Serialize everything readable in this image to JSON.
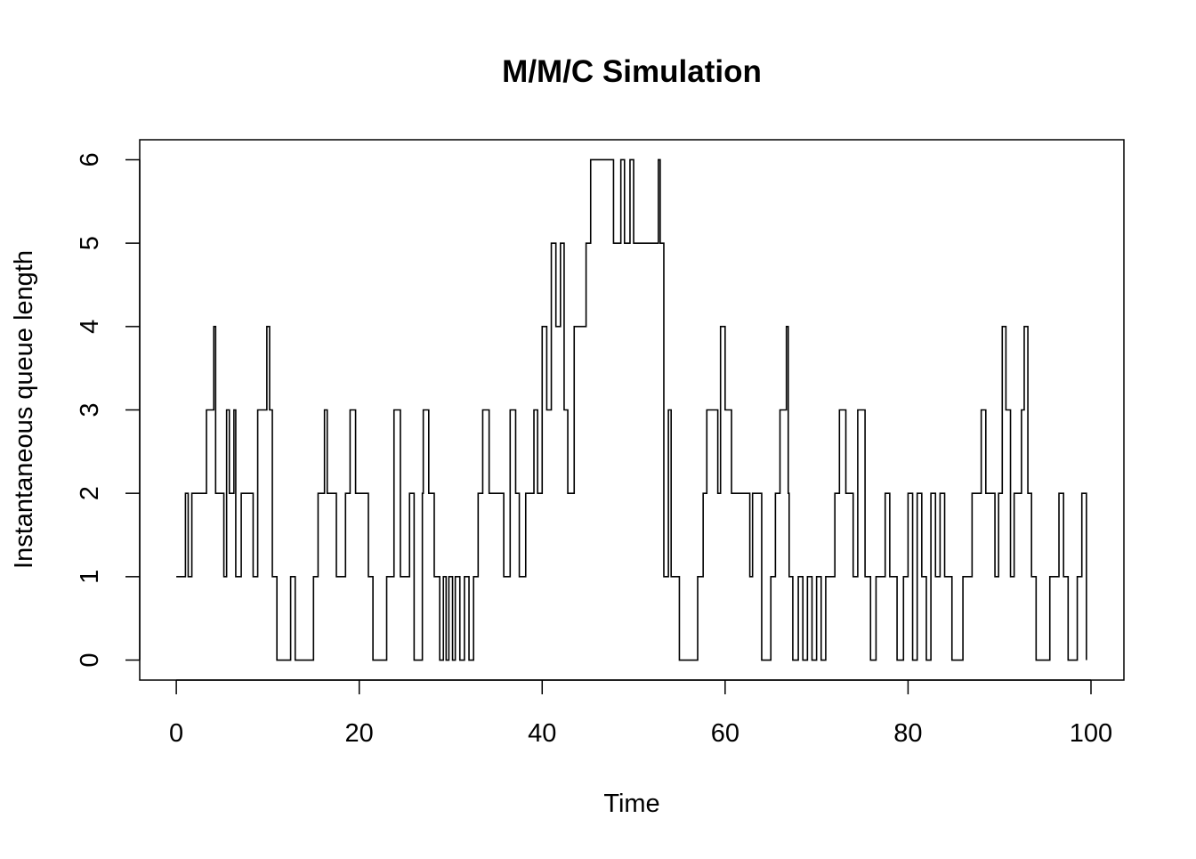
{
  "chart_data": {
    "type": "step",
    "title": "M/M/C Simulation",
    "x_label": "Time",
    "y_label": "Instantaneous queue length",
    "xlim": [
      -4,
      103.6
    ],
    "ylim": [
      -0.24,
      6.24
    ],
    "xticks": [
      0,
      20,
      40,
      60,
      80,
      100
    ],
    "yticks": [
      0,
      1,
      2,
      3,
      4,
      5,
      6
    ],
    "color": "#000000",
    "series": [
      {
        "x": [
          0,
          1,
          1.3,
          1.7,
          3.3,
          4.1,
          4.3,
          5.2,
          5.5,
          5.8,
          6.3,
          6.5,
          7.1,
          8.4,
          8.9,
          9.9,
          10.2,
          10.5,
          11,
          12.5,
          13,
          15,
          15.5,
          16.2,
          16.5,
          17.5,
          18.5,
          19,
          19.6,
          21,
          21.5,
          23,
          23.8,
          24.5,
          25.5,
          26,
          26.9,
          27,
          27.6,
          28.2,
          28.8,
          29.2,
          29.5,
          29.8,
          30.2,
          30.5,
          31,
          31.5,
          32,
          32.5,
          33,
          33.5,
          34.2,
          35.8,
          36.5,
          37.1,
          37.5,
          38.2,
          39.1,
          39.5,
          40,
          40.5,
          41,
          41.5,
          42,
          42.4,
          42.8,
          43.5,
          44.8,
          45.3,
          47.8,
          48.6,
          49,
          49.6,
          50,
          52.7,
          52.9,
          53.3,
          53.8,
          54.1,
          55,
          57,
          57.6,
          58,
          59.2,
          59.5,
          60,
          60.7,
          62.7,
          63,
          64,
          65,
          65.5,
          66,
          66.7,
          66.9,
          67,
          67.4,
          68,
          68.5,
          69,
          69.5,
          70,
          70.5,
          71,
          72,
          72.5,
          73.2,
          74,
          74.5,
          75.3,
          75.9,
          76.5,
          77.5,
          78,
          78.8,
          79.5,
          80,
          80.5,
          81,
          81.5,
          82,
          82.5,
          83,
          83.5,
          84,
          84.8,
          86,
          87,
          88,
          88.5,
          89.5,
          89.9,
          90.3,
          90.7,
          91.2,
          91.6,
          92.4,
          92.7,
          93.1,
          93.5,
          94,
          95.5,
          96.5,
          97,
          97.5,
          98.5,
          99,
          99.5
        ],
        "values": [
          1,
          2,
          1,
          2,
          3,
          4,
          2,
          1,
          3,
          2,
          3,
          1,
          2,
          1,
          3,
          4,
          3,
          1,
          0,
          1,
          0,
          1,
          2,
          3,
          2,
          1,
          2,
          3,
          2,
          1,
          0,
          1,
          3,
          1,
          2,
          0,
          2,
          3,
          2,
          1,
          0,
          1,
          0,
          1,
          0,
          1,
          0,
          1,
          0,
          1,
          2,
          3,
          2,
          1,
          3,
          2,
          1,
          2,
          3,
          2,
          4,
          3,
          5,
          4,
          5,
          3,
          2,
          4,
          5,
          6,
          5,
          6,
          5,
          6,
          5,
          6,
          5,
          1,
          3,
          1,
          0,
          1,
          2,
          3,
          2,
          4,
          3,
          2,
          1,
          2,
          0,
          1,
          2,
          3,
          4,
          2,
          1,
          0,
          1,
          0,
          1,
          0,
          1,
          0,
          1,
          2,
          3,
          2,
          1,
          3,
          1,
          0,
          1,
          2,
          1,
          0,
          1,
          2,
          0,
          2,
          1,
          0,
          2,
          1,
          2,
          1,
          0,
          1,
          2,
          3,
          2,
          1,
          2,
          4,
          3,
          1,
          2,
          3,
          4,
          2,
          1,
          0,
          1,
          2,
          1,
          0,
          1,
          2,
          0
        ]
      }
    ]
  }
}
